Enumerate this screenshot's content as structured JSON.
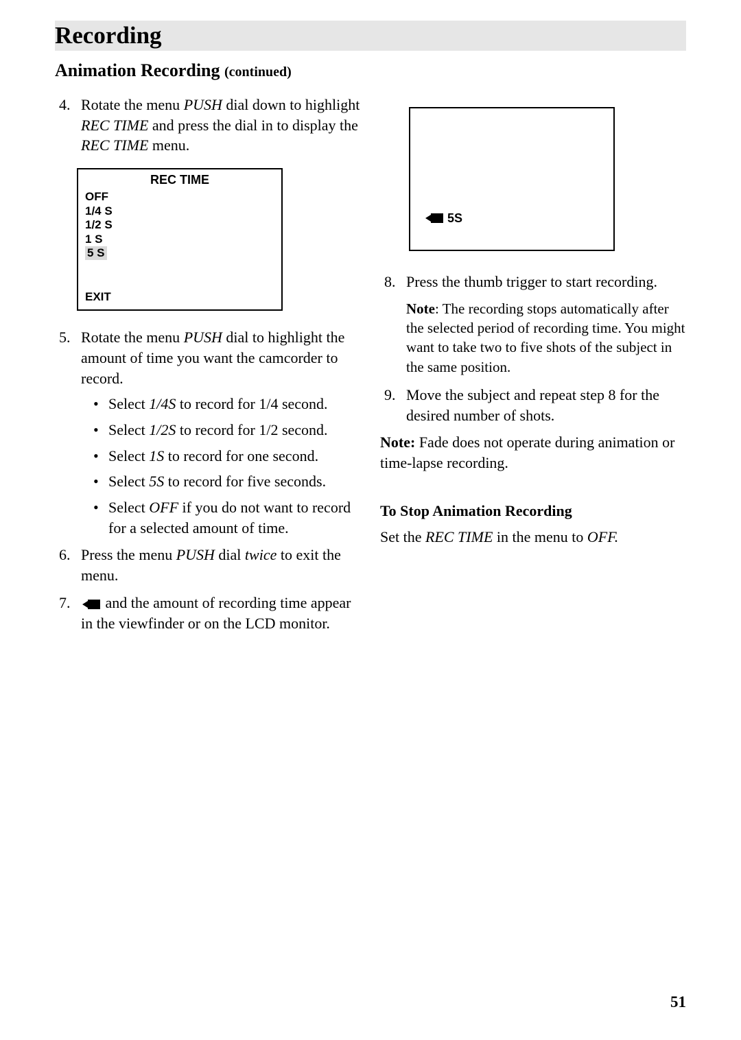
{
  "header": {
    "title": "Recording",
    "subtitle": "Animation Recording",
    "continued": "(continued)"
  },
  "left": {
    "step4": {
      "num": "4.",
      "t1": "Rotate the menu ",
      "push": "PUSH",
      "t2": " dial down to highlight ",
      "rectime": "REC TIME",
      "t3": " and press the dial in to display the ",
      "rectime2": "REC TIME",
      "t4": " menu."
    },
    "menu": {
      "title": "REC TIME",
      "items": [
        "OFF",
        "1/4 S",
        "1/2 S",
        "1 S",
        "5 S"
      ],
      "exit": "EXIT"
    },
    "step5": {
      "num": "5.",
      "t1": "Rotate the menu ",
      "push": "PUSH",
      "t2": " dial to highlight the amount of time you want the camcorder to record."
    },
    "bullets": {
      "b1": {
        "a": "Select ",
        "i": "1/4S",
        "b": " to record for 1/4 second."
      },
      "b2": {
        "a": "Select ",
        "i": "1/2S",
        "b": " to record for 1/2 second."
      },
      "b3": {
        "a": "Select ",
        "i": "1S",
        "b": " to record for one second."
      },
      "b4": {
        "a": "Select ",
        "i": "5S",
        "b": " to record for five seconds."
      },
      "b5": {
        "a": "Select ",
        "i": "OFF",
        "b": " if you do not want to record for a selected amount of time."
      }
    },
    "step6": {
      "num": "6.",
      "t1": "Press the menu ",
      "push": "PUSH",
      "t2": " dial ",
      "twice": "twice",
      "t3": " to exit the menu."
    },
    "step7": {
      "num": "7.",
      "t1": " and the amount of recording time appear in the viewfinder or on the LCD monitor."
    }
  },
  "right": {
    "display": {
      "label": "5S"
    },
    "step8": {
      "num": "8.",
      "text": "Press the thumb trigger to start recording."
    },
    "note8": {
      "label": "Note",
      "text": ":  The recording stops automatically after the selected period of recording time. You might want to take two to five shots of the subject in the same position."
    },
    "step9": {
      "num": "9.",
      "text": "Move the subject and repeat step 8 for the desired number of shots."
    },
    "noteFade": {
      "label": "Note:",
      "text": "  Fade does not operate during animation or time-lapse recording."
    },
    "stop": {
      "heading": "To Stop Animation Recording",
      "t1": "Set the ",
      "rectime": "REC TIME",
      "t2": " in the menu to ",
      "off": "OFF."
    }
  },
  "pagenum": "51"
}
